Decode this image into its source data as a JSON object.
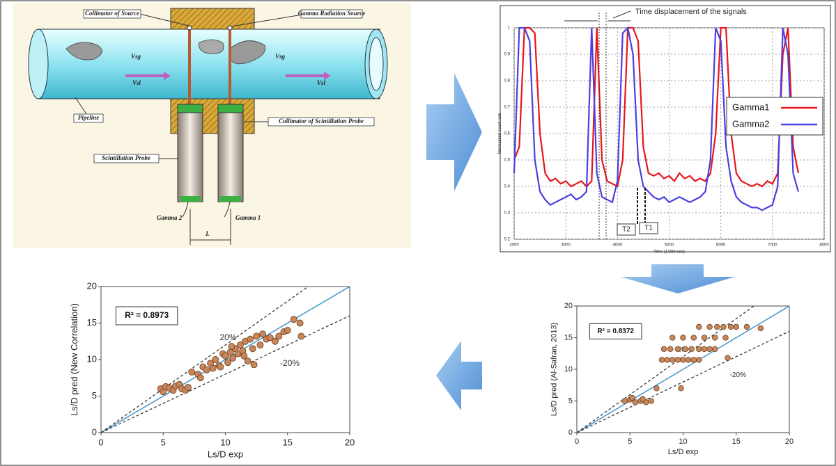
{
  "diagram": {
    "labels": [
      "Collimator of Source",
      "Gamma Radiation Source",
      "Vsg",
      "Vsl",
      "Vsg",
      "Vsl",
      "Pipeline",
      "Collimator of Scintillation Probe",
      "Scintillation Probe",
      "Gamma 2",
      "Gamma 1",
      "L"
    ]
  },
  "chart_data": [
    {
      "type": "line",
      "xlabel": "Time (1/250 sec)",
      "ylabel": "Normalized count rate",
      "annotations": [
        "Time displacement of the signals",
        "T2",
        "T1"
      ],
      "x": [
        2000,
        2100,
        2200,
        2300,
        2400,
        2500,
        2600,
        2700,
        2800,
        2900,
        3000,
        3100,
        3200,
        3300,
        3400,
        3500,
        3600,
        3700,
        3800,
        3900,
        4000,
        4100,
        4200,
        4300,
        4400,
        4500,
        4600,
        4700,
        4800,
        4900,
        5000,
        5100,
        5200,
        5300,
        5400,
        5500,
        5600,
        5700,
        5800,
        5900,
        6000,
        6100,
        6200,
        6300,
        6400,
        6500,
        6600,
        6700,
        6800,
        6900,
        7000,
        7100,
        7200,
        7300,
        7400,
        7500
      ],
      "series": [
        {
          "name": "Gamma1",
          "color": "#e8141b",
          "values": [
            0.5,
            0.55,
            1,
            1,
            0.98,
            0.6,
            0.45,
            0.42,
            0.43,
            0.41,
            0.42,
            0.4,
            0.41,
            0.42,
            0.4,
            0.42,
            1,
            0.5,
            0.42,
            0.41,
            0.4,
            0.5,
            1,
            1,
            0.95,
            0.55,
            0.45,
            0.44,
            0.45,
            0.43,
            0.44,
            0.42,
            0.45,
            0.43,
            0.44,
            0.42,
            0.43,
            0.42,
            0.45,
            0.6,
            1,
            1,
            0.6,
            0.45,
            0.42,
            0.41,
            0.4,
            0.41,
            0.4,
            0.42,
            0.41,
            0.45,
            0.9,
            1,
            0.55,
            0.45
          ]
        },
        {
          "name": "Gamma2",
          "color": "#4a3fe0",
          "values": [
            0.45,
            1,
            1,
            0.95,
            0.5,
            0.38,
            0.35,
            0.33,
            0.34,
            0.35,
            0.36,
            0.37,
            0.35,
            0.36,
            0.38,
            1,
            0.45,
            0.36,
            0.35,
            0.34,
            0.42,
            0.98,
            1,
            0.9,
            0.5,
            0.4,
            0.38,
            0.36,
            0.35,
            0.36,
            0.34,
            0.35,
            0.36,
            0.35,
            0.34,
            0.35,
            0.36,
            0.38,
            0.5,
            1,
            0.95,
            0.55,
            0.42,
            0.36,
            0.34,
            0.33,
            0.32,
            0.32,
            0.31,
            0.32,
            0.33,
            0.4,
            1,
            0.9,
            0.45,
            0.38
          ]
        }
      ],
      "xlim": [
        2000,
        8000
      ],
      "xticks": [
        2000,
        3000,
        4000,
        5000,
        6000,
        7000,
        8000
      ],
      "ylim": [
        0.2,
        1
      ],
      "yticks": [
        0.2,
        0.3,
        0.4,
        0.5,
        0.6,
        0.7,
        0.8,
        0.9,
        1
      ],
      "grid": true,
      "legend": "right"
    },
    {
      "type": "scatter",
      "xlabel": "Ls/D exp",
      "ylabel": "Ls/D pred (New Correlation)",
      "annotation": "R² = 0.8973",
      "x": [
        4.8,
        5,
        5.2,
        5.5,
        5.8,
        6,
        6.3,
        6.5,
        6.8,
        7,
        7.3,
        7.8,
        8.2,
        8.5,
        8.8,
        9,
        9.2,
        9.5,
        9.8,
        10,
        10.2,
        10.4,
        10.6,
        10.8,
        11,
        11.2,
        11.4,
        11.6,
        11.8,
        12,
        12.2,
        12.5,
        12.8,
        13,
        13.3,
        13.6,
        14,
        14.3,
        14.7,
        15,
        15.5,
        16,
        16.1,
        9.6,
        10.5,
        11.5,
        12.3,
        8
      ],
      "values": [
        6,
        5.6,
        6.3,
        6.1,
        5.8,
        6.4,
        6.6,
        6,
        5.8,
        6.2,
        8.3,
        8,
        9,
        8.6,
        9.5,
        8.8,
        10,
        9.2,
        10.8,
        10.5,
        9.6,
        11,
        10.2,
        11.5,
        10.8,
        12,
        11.2,
        12.5,
        9.8,
        12.8,
        11.5,
        13.2,
        12,
        13.5,
        12.8,
        13,
        12.5,
        13.2,
        13.8,
        14,
        15.5,
        15,
        13.2,
        9,
        11.8,
        10.5,
        9.3,
        7.5
      ],
      "color": "#c8865a",
      "lines": [
        {
          "slope": 1,
          "color": "#3a8fc8"
        },
        {
          "slope": 1.2,
          "label": "20%",
          "color": "#444"
        },
        {
          "slope": 0.8,
          "label": "-20%",
          "color": "#444"
        }
      ],
      "xlim": [
        0,
        20
      ],
      "xticks": [
        0,
        5,
        10,
        15,
        20
      ],
      "ylim": [
        0,
        20
      ],
      "yticks": [
        0,
        5,
        10,
        15,
        20
      ]
    },
    {
      "type": "scatter",
      "xlabel": "Ls/D exp",
      "ylabel": "Ls/D pred (Al-Safran, 2013)",
      "annotation": "R² = 0.8372",
      "x": [
        4.5,
        5,
        5.5,
        6,
        6.5,
        7,
        5.2,
        6.2,
        7.5,
        8,
        8.5,
        9,
        9.5,
        10,
        10.5,
        11,
        11.5,
        8.2,
        8.8,
        9.5,
        10.2,
        10.8,
        11.5,
        12,
        12.5,
        13,
        9,
        10,
        11,
        12,
        13,
        14,
        11.5,
        12.5,
        13.2,
        13.8,
        14.5,
        15,
        16,
        17.3,
        9.8,
        14.2
      ],
      "values": [
        5,
        5.2,
        4.8,
        5,
        4.8,
        5,
        5.5,
        5.3,
        7,
        11.5,
        11.5,
        11.5,
        11.5,
        11.5,
        11.5,
        11.5,
        11.5,
        13.2,
        13.2,
        13.2,
        13.2,
        13.2,
        13.2,
        13.2,
        13.2,
        13.2,
        15,
        15,
        15,
        15,
        15,
        15,
        16.7,
        16.7,
        16.7,
        16.7,
        16.7,
        16.7,
        16.7,
        16.5,
        7,
        11.8
      ],
      "color": "#c8865a",
      "lines": [
        {
          "slope": 1,
          "color": "#3a8fc8"
        },
        {
          "slope": 1.2,
          "label": "20%",
          "color": "#444"
        },
        {
          "slope": 0.8,
          "label": "-20%",
          "color": "#444"
        }
      ],
      "xlim": [
        0,
        20
      ],
      "xticks": [
        0,
        5,
        10,
        15,
        20
      ],
      "ylim": [
        0,
        20
      ],
      "yticks": [
        0,
        5,
        10,
        15,
        20
      ]
    }
  ]
}
